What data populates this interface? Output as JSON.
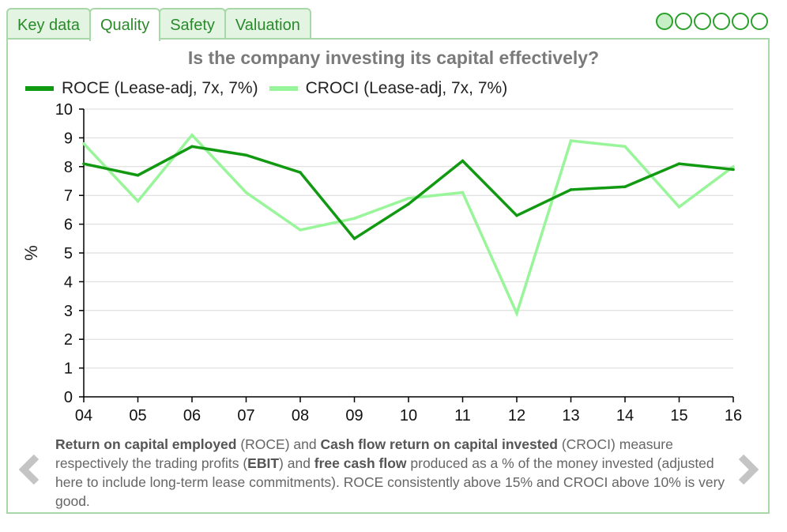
{
  "tabs": [
    {
      "label": "Key data",
      "active": false
    },
    {
      "label": "Quality",
      "active": true
    },
    {
      "label": "Safety",
      "active": false
    },
    {
      "label": "Valuation",
      "active": false
    }
  ],
  "pager": {
    "count": 6,
    "active_index": 0
  },
  "description": {
    "b1": "Return on capital employed",
    "t1": " (ROCE) and ",
    "b2": "Cash flow return on capital invested",
    "t2": " (CROCI) measure respectively the trading profits (",
    "b3": "EBIT",
    "t3": ") and ",
    "b4": "free cash flow",
    "t4": " produced as a % of the money invested (adjusted here to include long-term lease commitments). ROCE consistently above 15% and CROCI above 10% is very good."
  },
  "nav": {
    "prev_icon": "chevron-left-icon",
    "next_icon": "chevron-right-icon"
  },
  "colors": {
    "accent": "#2a8a2a",
    "roce": "#119911",
    "croci": "#99f599",
    "tab_bg": "#e3f4e3",
    "border": "#a8d8a8"
  },
  "chart_data": {
    "type": "line",
    "title": "Is the company investing its capital effectively?",
    "ylabel": "%",
    "xlabel": "",
    "ylim": [
      0,
      10
    ],
    "yticks": [
      0,
      1,
      2,
      3,
      4,
      5,
      6,
      7,
      8,
      9,
      10
    ],
    "grid": true,
    "legend_position": "top-left",
    "categories": [
      "04",
      "05",
      "06",
      "07",
      "08",
      "09",
      "10",
      "11",
      "12",
      "13",
      "14",
      "15",
      "16"
    ],
    "series": [
      {
        "name": "ROCE (Lease-adj, 7x, 7%)",
        "color": "#119911",
        "values": [
          8.1,
          7.7,
          8.7,
          8.4,
          7.8,
          5.5,
          6.7,
          8.2,
          6.3,
          7.2,
          7.3,
          8.1,
          7.9
        ]
      },
      {
        "name": "CROCI (Lease-adj, 7x, 7%)",
        "color": "#99f599",
        "values": [
          8.8,
          6.8,
          9.1,
          7.1,
          5.8,
          6.2,
          6.9,
          7.1,
          2.9,
          8.9,
          8.7,
          6.6,
          8.0
        ]
      }
    ]
  }
}
